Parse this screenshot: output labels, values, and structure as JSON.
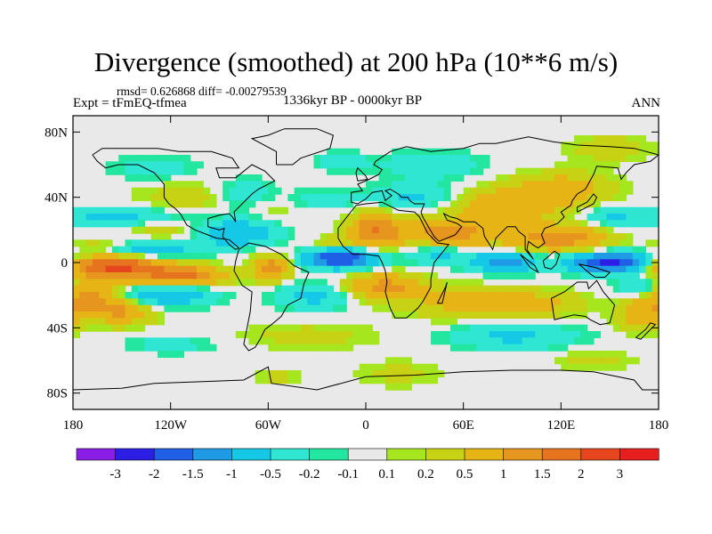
{
  "chart_data": {
    "type": "heatmap",
    "title": "Divergence (smoothed) at 200 hPa (10**6 m/s)",
    "stats_text": "rmsd= 0.626868  diff= -0.00279539",
    "expt_text": "Expt = tFmEQ-tfmea",
    "period_text": "1336kyr BP - 0000kyr BP",
    "season_text": "ANN",
    "xlim": [
      -180,
      180
    ],
    "ylim": [
      -90,
      90
    ],
    "x_ticks": [
      {
        "value": -180,
        "label": "180"
      },
      {
        "value": -120,
        "label": "120W"
      },
      {
        "value": -60,
        "label": "60W"
      },
      {
        "value": 0,
        "label": "0"
      },
      {
        "value": 60,
        "label": "60E"
      },
      {
        "value": 120,
        "label": "120E"
      },
      {
        "value": 180,
        "label": "180"
      }
    ],
    "y_ticks": [
      {
        "value": 80,
        "label": "80N"
      },
      {
        "value": 40,
        "label": "40N"
      },
      {
        "value": 0,
        "label": "0"
      },
      {
        "value": -40,
        "label": "40S"
      },
      {
        "value": -80,
        "label": "80S"
      }
    ],
    "colorbar": {
      "colors": [
        "#8b1ee6",
        "#2d1ee6",
        "#1f5fe6",
        "#1f9be6",
        "#14c8e6",
        "#2ee6d2",
        "#23e6a0",
        "#e9e9e9",
        "#a6e61e",
        "#c8d214",
        "#e6b414",
        "#e6961e",
        "#e6731e",
        "#e6461e",
        "#e61e1e"
      ],
      "tick_labels": [
        "-3",
        "-2",
        "-1.5",
        "-1",
        "-0.5",
        "-0.2",
        "-0.1",
        "0.1",
        "0.2",
        "0.5",
        "1",
        "1.5",
        "2",
        "3"
      ]
    },
    "blobs": [
      {
        "lon": -155,
        "lat": -2,
        "rlon": 30,
        "rlat": 8,
        "v": 2.2
      },
      {
        "lon": -160,
        "lat": 10,
        "rlon": 25,
        "rlat": 4,
        "v": 1.0
      },
      {
        "lon": -170,
        "lat": -20,
        "rlon": 20,
        "rlat": 10,
        "v": 1.2
      },
      {
        "lon": -150,
        "lat": -30,
        "rlon": 20,
        "rlat": 8,
        "v": 1.0
      },
      {
        "lon": -112,
        "lat": -8,
        "rlon": 25,
        "rlat": 6,
        "v": 1.6
      },
      {
        "lon": -125,
        "lat": 20,
        "rlon": 28,
        "rlat": 8,
        "v": 0.4
      },
      {
        "lon": -100,
        "lat": 40,
        "rlon": 40,
        "rlat": 10,
        "v": 0.4
      },
      {
        "lon": -55,
        "lat": 36,
        "rlon": 30,
        "rlat": 8,
        "v": 0.5
      },
      {
        "lon": -20,
        "lat": 10,
        "rlon": 15,
        "rlat": 6,
        "v": 0.5
      },
      {
        "lon": -58,
        "lat": -3,
        "rlon": 12,
        "rlat": 8,
        "v": 1.2
      },
      {
        "lon": -35,
        "lat": -45,
        "rlon": 45,
        "rlat": 8,
        "v": 0.3
      },
      {
        "lon": 5,
        "lat": 20,
        "rlon": 15,
        "rlat": 12,
        "v": 1.3
      },
      {
        "lon": 50,
        "lat": 18,
        "rlon": 35,
        "rlat": 8,
        "v": 1.2
      },
      {
        "lon": 10,
        "lat": -15,
        "rlon": 25,
        "rlat": 8,
        "v": 1.2
      },
      {
        "lon": 60,
        "lat": -25,
        "rlon": 35,
        "rlat": 10,
        "v": 0.6
      },
      {
        "lon": 85,
        "lat": 35,
        "rlon": 35,
        "rlat": 10,
        "v": 0.9
      },
      {
        "lon": 120,
        "lat": 45,
        "rlon": 30,
        "rlat": 10,
        "v": 0.8
      },
      {
        "lon": 120,
        "lat": 15,
        "rlon": 30,
        "rlat": 8,
        "v": 1.3
      },
      {
        "lon": 105,
        "lat": -25,
        "rlon": 30,
        "rlat": 8,
        "v": 0.6
      },
      {
        "lon": 170,
        "lat": -32,
        "rlon": 15,
        "rlat": 10,
        "v": 0.8
      },
      {
        "lon": 150,
        "lat": 70,
        "rlon": 25,
        "rlat": 8,
        "v": 0.4
      },
      {
        "lon": -55,
        "lat": -70,
        "rlon": 15,
        "rlat": 6,
        "v": 0.25
      },
      {
        "lon": 20,
        "lat": -68,
        "rlon": 25,
        "rlat": 8,
        "v": 0.3
      },
      {
        "lon": 140,
        "lat": -60,
        "rlon": 25,
        "rlat": 6,
        "v": 0.3
      },
      {
        "lon": -145,
        "lat": 8,
        "rlon": 35,
        "rlat": 6,
        "v": -1.4
      },
      {
        "lon": -150,
        "lat": 28,
        "rlon": 40,
        "rlat": 6,
        "v": -0.7
      },
      {
        "lon": -125,
        "lat": -20,
        "rlon": 30,
        "rlat": 7,
        "v": -1.0
      },
      {
        "lon": -80,
        "lat": 18,
        "rlon": 25,
        "rlat": 8,
        "v": -1.0
      },
      {
        "lon": -75,
        "lat": 40,
        "rlon": 20,
        "rlat": 10,
        "v": -0.8
      },
      {
        "lon": -35,
        "lat": 38,
        "rlon": 25,
        "rlat": 7,
        "v": -0.6
      },
      {
        "lon": -15,
        "lat": 3,
        "rlon": 22,
        "rlat": 6,
        "v": -2.2
      },
      {
        "lon": -30,
        "lat": -20,
        "rlon": 25,
        "rlat": 8,
        "v": -0.7
      },
      {
        "lon": 30,
        "lat": 40,
        "rlon": 30,
        "rlat": 8,
        "v": -0.6
      },
      {
        "lon": 45,
        "lat": 5,
        "rlon": 20,
        "rlat": 6,
        "v": -0.6
      },
      {
        "lon": 40,
        "lat": 60,
        "rlon": 30,
        "rlat": 8,
        "v": -0.5
      },
      {
        "lon": 85,
        "lat": 0,
        "rlon": 20,
        "rlat": 6,
        "v": -1.3
      },
      {
        "lon": 150,
        "lat": 0,
        "rlon": 25,
        "rlat": 6,
        "v": -2.2
      },
      {
        "lon": 150,
        "lat": 28,
        "rlon": 20,
        "rlat": 7,
        "v": -0.5
      },
      {
        "lon": 90,
        "lat": -45,
        "rlon": 40,
        "rlat": 8,
        "v": -0.6
      },
      {
        "lon": 170,
        "lat": -15,
        "rlon": 15,
        "rlat": 7,
        "v": -0.8
      },
      {
        "lon": -130,
        "lat": 58,
        "rlon": 25,
        "rlat": 7,
        "v": -0.4
      },
      {
        "lon": -15,
        "lat": 62,
        "rlon": 15,
        "rlat": 6,
        "v": -0.4
      },
      {
        "lon": -120,
        "lat": -50,
        "rlon": 30,
        "rlat": 6,
        "v": -0.3
      }
    ]
  }
}
